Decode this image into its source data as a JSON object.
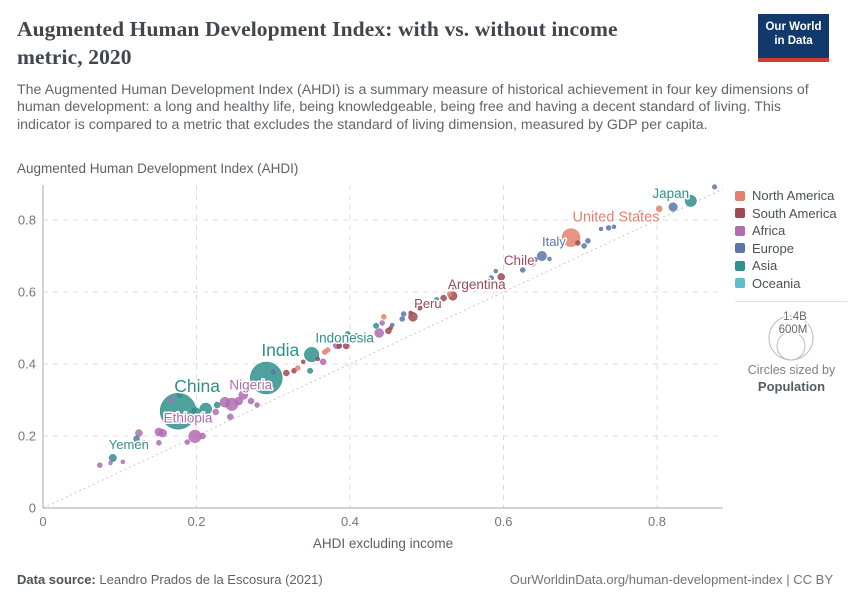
{
  "header": {
    "title": "Augmented Human Development Index: with vs. without income metric, 2020",
    "subtitle": "The Augmented Human Development Index (AHDI) is a summary measure of historical achievement in four key dimensions of human development: a long and healthy life, being knowledgeable, being free and having a decent standard of living. This indicator is compared to a metric that excludes the standard of living dimension, measured by GDP per capita.",
    "logo": {
      "line1": "Our World",
      "line2": "in Data",
      "bg": "#12396b",
      "accent": "#d63b2f"
    }
  },
  "legend": {
    "size": {
      "big": "1.4B",
      "small": "600M",
      "caption1": "Circles sized by",
      "caption2": "Population"
    }
  },
  "footer": {
    "source_label": "Data source:",
    "source_value": "Leandro Prados de la Escosura (2021)",
    "credit": "OurWorldinData.org/human-development-index | CC BY"
  },
  "chart_data": {
    "type": "scatter",
    "title": "Augmented Human Development Index: with vs. without income metric, 2020",
    "xlabel": "AHDI excluding income",
    "ylabel": "Augmented Human Development Index (AHDI)",
    "xlim": [
      0,
      0.88
    ],
    "ylim": [
      0,
      0.9
    ],
    "grid": true,
    "diagonal_reference_line": true,
    "ticks": [
      0,
      0.2,
      0.4,
      0.6,
      0.8
    ],
    "x_tick_labels": [
      "0",
      "0.2",
      "0.4",
      "0.6",
      "0.8"
    ],
    "y_tick_labels": [
      "0",
      "0.2",
      "0.4",
      "0.6",
      "0.8"
    ],
    "region_order": [
      "na",
      "sa",
      "af",
      "eu",
      "as",
      "oc"
    ],
    "regions": {
      "na": {
        "label": "North America",
        "color": "#e5806c"
      },
      "sa": {
        "label": "South America",
        "color": "#9c4b55"
      },
      "af": {
        "label": "Africa",
        "color": "#b26cb2"
      },
      "eu": {
        "label": "Europe",
        "color": "#5e76ab"
      },
      "as": {
        "label": "Asia",
        "color": "#2f908c"
      },
      "oc": {
        "label": "Oceania",
        "color": "#59c1c7"
      }
    },
    "points": [
      {
        "region": "as",
        "x": 0.176,
        "y": 0.269,
        "s": 18,
        "label": "China",
        "lx": 19,
        "ly": -19,
        "ls": 17.5
      },
      {
        "region": "as",
        "x": 0.291,
        "y": 0.361,
        "s": 16,
        "label": "India",
        "lx": 14,
        "ly": -22,
        "ls": 17.5
      },
      {
        "region": "as",
        "x": 0.35,
        "y": 0.426,
        "s": 7.3,
        "label": "Indonesia",
        "lx": 33,
        "ly": -12,
        "ls": 13.5
      },
      {
        "region": "as",
        "x": 0.091,
        "y": 0.139,
        "s": 3.7,
        "label": "Yemen",
        "lx": 16,
        "ly": -9,
        "ls": 13
      },
      {
        "region": "as",
        "x": 0.844,
        "y": 0.853,
        "s": 5.7,
        "label": "Japan",
        "lx": -20,
        "ly": -3,
        "ls": 13.5
      },
      {
        "region": "af",
        "x": 0.198,
        "y": 0.199,
        "s": 6.3,
        "label": "Ethiopia",
        "lx": -7,
        "ly": -14,
        "ls": 13.5
      },
      {
        "region": "af",
        "x": 0.246,
        "y": 0.288,
        "s": 6.3,
        "label": "Nigeria",
        "lx": 19,
        "ly": -15,
        "ls": 13.5
      },
      {
        "region": "sa",
        "x": 0.482,
        "y": 0.531,
        "s": 4.5,
        "label": "Peru",
        "lx": 15,
        "ly": -9,
        "ls": 13
      },
      {
        "region": "sa",
        "x": 0.534,
        "y": 0.589,
        "s": 4.3,
        "label": "Argentina",
        "lx": 24,
        "ly": -7,
        "ls": 13.5
      },
      {
        "region": "sa",
        "x": 0.597,
        "y": 0.642,
        "s": 3.5,
        "label": "Chile",
        "lx": 18,
        "ly": -12,
        "ls": 13.5
      },
      {
        "region": "eu",
        "x": 0.65,
        "y": 0.7,
        "s": 4.7,
        "label": "Italy",
        "lx": 12,
        "ly": -10,
        "ls": 13
      },
      {
        "region": "na",
        "x": 0.688,
        "y": 0.751,
        "s": 9,
        "label": "United States",
        "lx": 45,
        "ly": -16,
        "ls": 14.5
      },
      {
        "region": "af",
        "x": 0.074,
        "y": 0.119,
        "s": 2.5
      },
      {
        "region": "af",
        "x": 0.088,
        "y": 0.125,
        "s": 2
      },
      {
        "region": "af",
        "x": 0.104,
        "y": 0.128,
        "s": 2
      },
      {
        "region": "af",
        "x": 0.122,
        "y": 0.183,
        "s": 2.5
      },
      {
        "region": "af",
        "x": 0.132,
        "y": 0.181,
        "s": 2.5
      },
      {
        "region": "af",
        "x": 0.151,
        "y": 0.181,
        "s": 2.5
      },
      {
        "region": "af",
        "x": 0.125,
        "y": 0.208,
        "s": 3.5
      },
      {
        "region": "af",
        "x": 0.151,
        "y": 0.211,
        "s": 4
      },
      {
        "region": "af",
        "x": 0.156,
        "y": 0.208,
        "s": 4
      },
      {
        "region": "af",
        "x": 0.188,
        "y": 0.183,
        "s": 2.5
      },
      {
        "region": "af",
        "x": 0.208,
        "y": 0.2,
        "s": 3
      },
      {
        "region": "af",
        "x": 0.167,
        "y": 0.3,
        "s": 2.5
      },
      {
        "region": "af",
        "x": 0.225,
        "y": 0.267,
        "s": 3
      },
      {
        "region": "af",
        "x": 0.237,
        "y": 0.294,
        "s": 5
      },
      {
        "region": "af",
        "x": 0.255,
        "y": 0.297,
        "s": 4
      },
      {
        "region": "af",
        "x": 0.261,
        "y": 0.314,
        "s": 4.5
      },
      {
        "region": "af",
        "x": 0.271,
        "y": 0.297,
        "s": 3
      },
      {
        "region": "af",
        "x": 0.279,
        "y": 0.286,
        "s": 2.5
      },
      {
        "region": "af",
        "x": 0.244,
        "y": 0.253,
        "s": 3
      },
      {
        "region": "af",
        "x": 0.365,
        "y": 0.406,
        "s": 3
      },
      {
        "region": "af",
        "x": 0.383,
        "y": 0.453,
        "s": 4
      },
      {
        "region": "af",
        "x": 0.438,
        "y": 0.486,
        "s": 4.5
      },
      {
        "region": "af",
        "x": 0.442,
        "y": 0.514,
        "s": 2.5
      },
      {
        "region": "as",
        "x": 0.122,
        "y": 0.192,
        "s": 3
      },
      {
        "region": "as",
        "x": 0.178,
        "y": 0.314,
        "s": 2.7
      },
      {
        "region": "as",
        "x": 0.198,
        "y": 0.25,
        "s": 3
      },
      {
        "region": "as",
        "x": 0.199,
        "y": 0.267,
        "s": 4.3
      },
      {
        "region": "as",
        "x": 0.212,
        "y": 0.275,
        "s": 6
      },
      {
        "region": "as",
        "x": 0.227,
        "y": 0.286,
        "s": 3
      },
      {
        "region": "as",
        "x": 0.348,
        "y": 0.381,
        "s": 2.7
      },
      {
        "region": "as",
        "x": 0.397,
        "y": 0.483,
        "s": 2.7
      },
      {
        "region": "as",
        "x": 0.408,
        "y": 0.478,
        "s": 2.5
      },
      {
        "region": "as",
        "x": 0.434,
        "y": 0.506,
        "s": 2.7
      },
      {
        "region": "as",
        "x": 0.513,
        "y": 0.578,
        "s": 2.5
      },
      {
        "region": "as",
        "x": 0.78,
        "y": 0.819,
        "s": 3
      },
      {
        "region": "sa",
        "x": 0.317,
        "y": 0.375,
        "s": 3
      },
      {
        "region": "sa",
        "x": 0.327,
        "y": 0.381,
        "s": 2.5
      },
      {
        "region": "sa",
        "x": 0.339,
        "y": 0.406,
        "s": 2
      },
      {
        "region": "sa",
        "x": 0.358,
        "y": 0.414,
        "s": 2
      },
      {
        "region": "sa",
        "x": 0.386,
        "y": 0.45,
        "s": 2.5
      },
      {
        "region": "sa",
        "x": 0.395,
        "y": 0.45,
        "s": 3
      },
      {
        "region": "sa",
        "x": 0.45,
        "y": 0.492,
        "s": 3
      },
      {
        "region": "sa",
        "x": 0.453,
        "y": 0.5,
        "s": 2
      },
      {
        "region": "sa",
        "x": 0.479,
        "y": 0.542,
        "s": 2
      },
      {
        "region": "sa",
        "x": 0.491,
        "y": 0.556,
        "s": 2.5
      },
      {
        "region": "sa",
        "x": 0.507,
        "y": 0.569,
        "s": 2.5
      },
      {
        "region": "sa",
        "x": 0.522,
        "y": 0.583,
        "s": 3
      },
      {
        "region": "sa",
        "x": 0.536,
        "y": 0.614,
        "s": 2.5
      },
      {
        "region": "sa",
        "x": 0.56,
        "y": 0.617,
        "s": 3
      },
      {
        "region": "sa",
        "x": 0.638,
        "y": 0.678,
        "s": 2.5
      },
      {
        "region": "sa",
        "x": 0.697,
        "y": 0.736,
        "s": 2.5
      },
      {
        "region": "na",
        "x": 0.332,
        "y": 0.389,
        "s": 2.5
      },
      {
        "region": "na",
        "x": 0.367,
        "y": 0.433,
        "s": 2.5
      },
      {
        "region": "na",
        "x": 0.371,
        "y": 0.439,
        "s": 2.5
      },
      {
        "region": "na",
        "x": 0.444,
        "y": 0.531,
        "s": 2.5
      },
      {
        "region": "na",
        "x": 0.53,
        "y": 0.594,
        "s": 2.5
      },
      {
        "region": "na",
        "x": 0.564,
        "y": 0.625,
        "s": 2
      },
      {
        "region": "na",
        "x": 0.803,
        "y": 0.831,
        "s": 3
      },
      {
        "region": "eu",
        "x": 0.3,
        "y": 0.378,
        "s": 2.5
      },
      {
        "region": "eu",
        "x": 0.455,
        "y": 0.508,
        "s": 2
      },
      {
        "region": "eu",
        "x": 0.468,
        "y": 0.525,
        "s": 2.5
      },
      {
        "region": "eu",
        "x": 0.47,
        "y": 0.539,
        "s": 2.5
      },
      {
        "region": "eu",
        "x": 0.547,
        "y": 0.619,
        "s": 2.5
      },
      {
        "region": "eu",
        "x": 0.584,
        "y": 0.639,
        "s": 2.5
      },
      {
        "region": "eu",
        "x": 0.59,
        "y": 0.658,
        "s": 2
      },
      {
        "region": "eu",
        "x": 0.625,
        "y": 0.661,
        "s": 2.5
      },
      {
        "region": "eu",
        "x": 0.641,
        "y": 0.69,
        "s": 2.5
      },
      {
        "region": "eu",
        "x": 0.66,
        "y": 0.692,
        "s": 2
      },
      {
        "region": "eu",
        "x": 0.705,
        "y": 0.728,
        "s": 2.5
      },
      {
        "region": "eu",
        "x": 0.71,
        "y": 0.742,
        "s": 2.5
      },
      {
        "region": "eu",
        "x": 0.727,
        "y": 0.775,
        "s": 2
      },
      {
        "region": "eu",
        "x": 0.737,
        "y": 0.778,
        "s": 2.5
      },
      {
        "region": "eu",
        "x": 0.744,
        "y": 0.781,
        "s": 2
      },
      {
        "region": "eu",
        "x": 0.821,
        "y": 0.836,
        "s": 4.3
      },
      {
        "region": "eu",
        "x": 0.838,
        "y": 0.875,
        "s": 2.3
      },
      {
        "region": "eu",
        "x": 0.875,
        "y": 0.892,
        "s": 2.3
      },
      {
        "region": "oc",
        "x": 0.79,
        "y": 0.814,
        "s": 2.7
      },
      {
        "region": "oc",
        "x": 0.77,
        "y": 0.808,
        "s": 2
      }
    ]
  }
}
